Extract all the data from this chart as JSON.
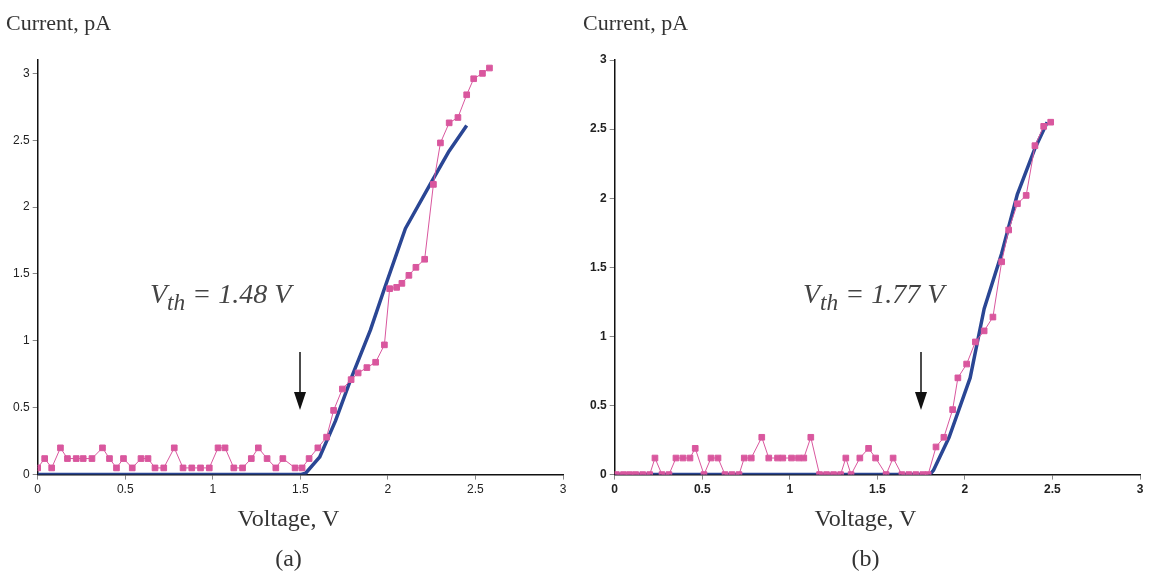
{
  "chart_data": [
    {
      "type": "line",
      "xlabel": "Voltage, V",
      "ylabel": "Current, pA",
      "xlim": [
        0,
        3
      ],
      "xticks": [
        0,
        0.5,
        1,
        1.5,
        2,
        2.5,
        3
      ],
      "ylim": [
        0,
        3.1
      ],
      "yticks": [
        0,
        0.5,
        1,
        1.5,
        2,
        2.5,
        3
      ],
      "grid": false,
      "legend": false,
      "annotations": [
        "V$_{th}$ = 1.48 V",
        "(a)"
      ],
      "series": [
        {
          "marker": "square",
          "color": "#d9579e",
          "x": [
            0,
            0.04,
            0.08,
            0.13,
            0.17,
            0.22,
            0.26,
            0.31,
            0.37,
            0.41,
            0.45,
            0.49,
            0.54,
            0.59,
            0.63,
            0.67,
            0.72,
            0.78,
            0.83,
            0.88,
            0.93,
            0.98,
            1.03,
            1.07,
            1.12,
            1.17,
            1.22,
            1.26,
            1.31,
            1.36,
            1.4,
            1.47,
            1.51,
            1.55,
            1.6,
            1.65,
            1.69,
            1.74,
            1.79,
            1.83,
            1.88,
            1.93,
            1.98,
            2.01,
            2.05,
            2.08,
            2.12,
            2.16,
            2.21,
            2.26,
            2.3,
            2.35,
            2.4,
            2.45,
            2.49,
            2.54,
            2.58
          ],
          "values": [
            0.05,
            0.12,
            0.05,
            0.2,
            0.12,
            0.12,
            0.12,
            0.12,
            0.2,
            0.12,
            0.05,
            0.12,
            0.05,
            0.12,
            0.12,
            0.05,
            0.05,
            0.2,
            0.05,
            0.05,
            0.05,
            0.05,
            0.2,
            0.2,
            0.05,
            0.05,
            0.12,
            0.2,
            0.12,
            0.05,
            0.12,
            0.05,
            0.05,
            0.12,
            0.2,
            0.28,
            0.48,
            0.64,
            0.71,
            0.76,
            0.8,
            0.84,
            0.97,
            1.39,
            1.4,
            1.43,
            1.49,
            1.55,
            1.61,
            2.17,
            2.48,
            2.63,
            2.67,
            2.84,
            2.96,
            3,
            3.04
          ]
        },
        {
          "marker": "none",
          "color": "#2a4694",
          "x": [
            0,
            1.5,
            1.53,
            1.61,
            1.7,
            1.79,
            1.9,
            1.98,
            2.1,
            2.25,
            2.35,
            2.45
          ],
          "values": [
            0,
            0,
            0.01,
            0.13,
            0.4,
            0.72,
            1.08,
            1.39,
            1.84,
            2.19,
            2.42,
            2.61
          ]
        }
      ]
    },
    {
      "type": "line",
      "xlabel": "Voltage, V",
      "ylabel": "Current, pA",
      "xlim": [
        0,
        3
      ],
      "xticks": [
        0,
        0.5,
        1,
        1.5,
        2,
        2.5,
        3
      ],
      "ylim": [
        0,
        3
      ],
      "yticks": [
        0,
        0.5,
        1,
        1.5,
        2,
        2.5,
        3
      ],
      "grid": false,
      "legend": false,
      "annotations": [
        "V$_{th}$ = 1.77 V",
        "(b)"
      ],
      "series": [
        {
          "marker": "square",
          "color": "#d9579e",
          "x": [
            0.01,
            0.05,
            0.085,
            0.12,
            0.16,
            0.2,
            0.23,
            0.27,
            0.31,
            0.35,
            0.39,
            0.43,
            0.46,
            0.51,
            0.55,
            0.59,
            0.63,
            0.67,
            0.71,
            0.74,
            0.78,
            0.84,
            0.88,
            0.93,
            0.96,
            1.01,
            1.05,
            1.08,
            1.12,
            1.17,
            1.21,
            1.25,
            1.29,
            1.32,
            1.35,
            1.4,
            1.45,
            1.49,
            1.55,
            1.59,
            1.64,
            1.68,
            1.72,
            1.76,
            1.79,
            1.835,
            1.88,
            1.93,
            1.96,
            2.01,
            2.06,
            2.11,
            2.16,
            2.21,
            2.25,
            2.3,
            2.35,
            2.4,
            2.45,
            2.49
          ],
          "values": [
            0,
            0,
            0,
            0,
            0,
            0,
            0.12,
            0,
            0,
            0.12,
            0.12,
            0.12,
            0.19,
            0,
            0.12,
            0.12,
            0,
            0,
            0,
            0.12,
            0.12,
            0.27,
            0.12,
            0.12,
            0.12,
            0.12,
            0.12,
            0.12,
            0.27,
            0,
            0,
            0,
            0,
            0.12,
            0,
            0.12,
            0.19,
            0.12,
            0,
            0.12,
            0,
            0,
            0,
            0,
            0,
            0.2,
            0.27,
            0.47,
            0.7,
            0.8,
            0.96,
            1.04,
            1.14,
            1.54,
            1.77,
            1.96,
            2.02,
            2.38,
            2.52,
            2.55
          ]
        },
        {
          "marker": "none",
          "color": "#2a4694",
          "x": [
            0,
            1.8,
            1.82,
            1.91,
            2.03,
            2.11,
            2.21,
            2.3,
            2.4,
            2.47
          ],
          "values": [
            0,
            0,
            0.03,
            0.27,
            0.7,
            1.2,
            1.6,
            2.03,
            2.36,
            2.55
          ]
        }
      ]
    }
  ]
}
